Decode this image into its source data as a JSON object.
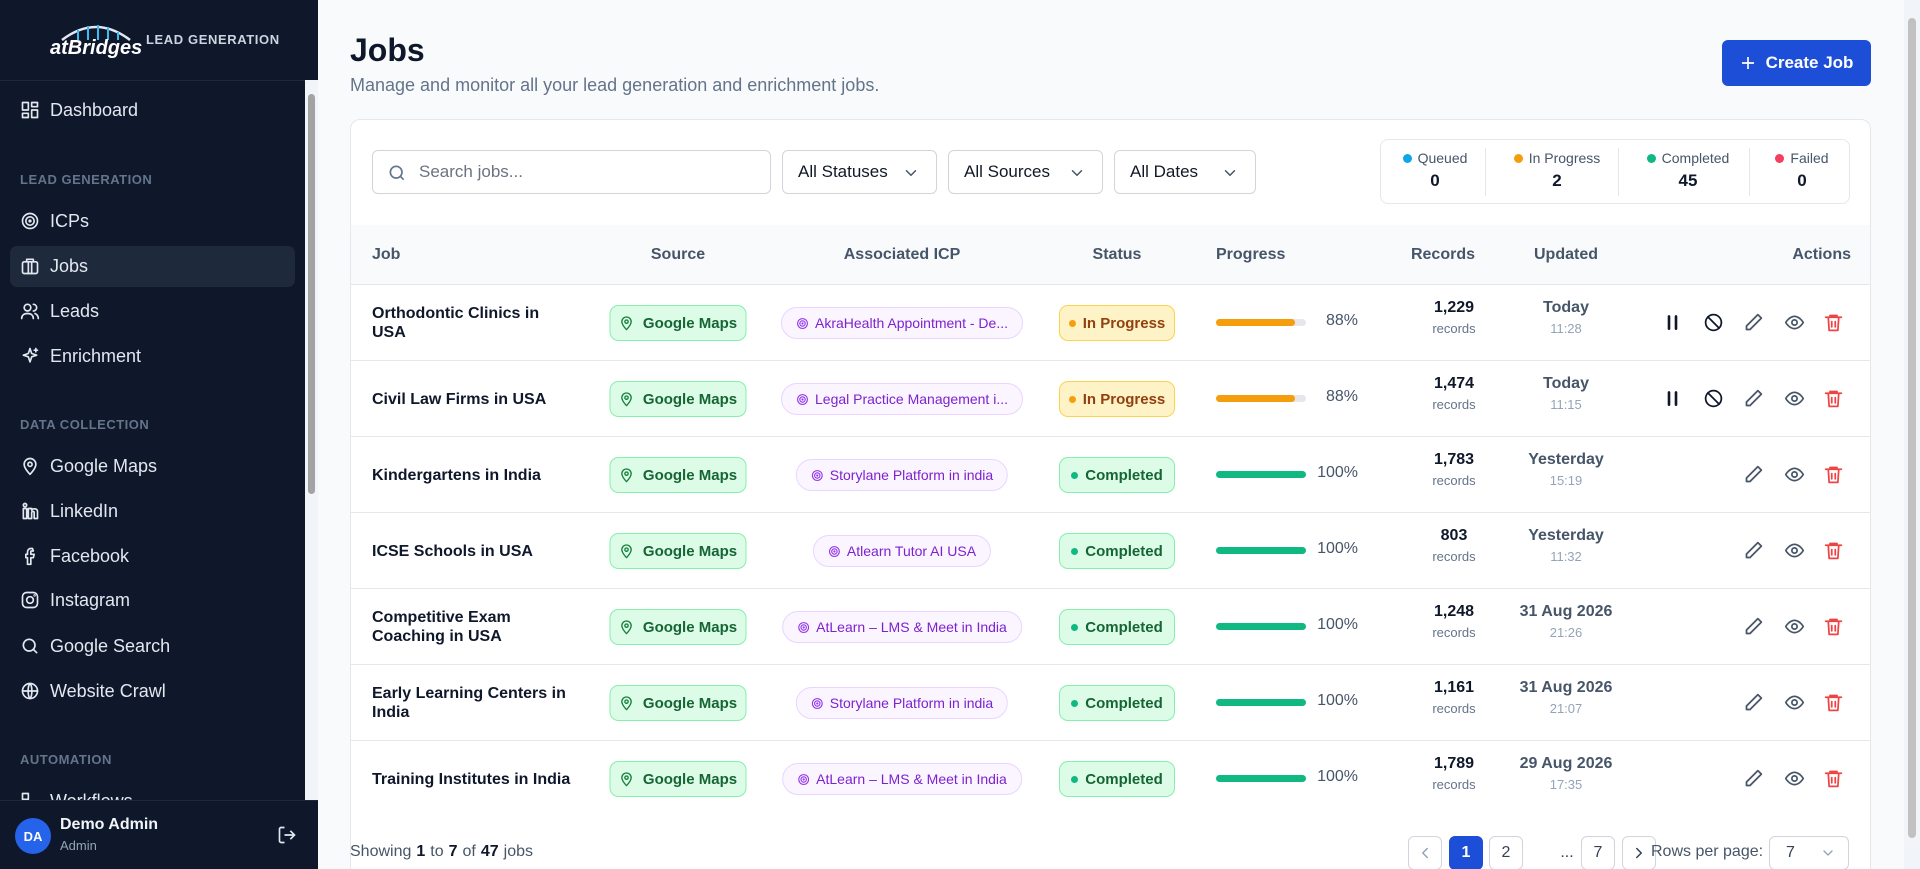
{
  "sidebar": {
    "brand": "atBridges",
    "brand_tag": "LEAD GENERATION",
    "sections": [
      {
        "items": [
          "Dashboard"
        ]
      },
      {
        "heading": "LEAD GENERATION",
        "items": [
          "ICPs",
          "Jobs",
          "Leads",
          "Enrichment"
        ]
      },
      {
        "heading": "DATA COLLECTION",
        "items": [
          "Google Maps",
          "LinkedIn",
          "Facebook",
          "Instagram",
          "Google Search",
          "Website Crawl"
        ]
      },
      {
        "heading": "AUTOMATION",
        "items": [
          "Workflows"
        ]
      }
    ],
    "user": {
      "initials": "DA",
      "name": "Demo Admin",
      "role": "Admin"
    }
  },
  "header": {
    "title": "Jobs",
    "subtitle": "Manage and monitor all your lead generation and enrichment jobs.",
    "create_button": "Create Job"
  },
  "filters": {
    "search_placeholder": "Search jobs...",
    "selects": [
      "All Statuses",
      "All Sources",
      "All Dates"
    ]
  },
  "stats": [
    {
      "label": "Queued",
      "value": "0",
      "color": "#0ea5e9"
    },
    {
      "label": "In Progress",
      "value": "2",
      "color": "#f59e0b"
    },
    {
      "label": "Completed",
      "value": "45",
      "color": "#10b981"
    },
    {
      "label": "Failed",
      "value": "0",
      "color": "#f43f5e"
    }
  ],
  "table": {
    "columns": [
      "Job",
      "Source",
      "Associated ICP",
      "Status",
      "Progress",
      "Records",
      "Updated",
      "Actions"
    ],
    "records_unit": "records",
    "rows": [
      {
        "job": "Orthodontic Clinics in USA",
        "source": "Google Maps",
        "icp": "AkraHealth Appointment - De...",
        "status": "In Progress",
        "progress": 88,
        "progress_label": "88%",
        "records": "1,229",
        "updated_date": "Today",
        "updated_time": "11:28"
      },
      {
        "job": "Civil Law Firms in USA",
        "source": "Google Maps",
        "icp": "Legal Practice Management i...",
        "status": "In Progress",
        "progress": 88,
        "progress_label": "88%",
        "records": "1,474",
        "updated_date": "Today",
        "updated_time": "11:15"
      },
      {
        "job": "Kindergartens in India",
        "source": "Google Maps",
        "icp": "Storylane Platform in india",
        "status": "Completed",
        "progress": 100,
        "progress_label": "100%",
        "records": "1,783",
        "updated_date": "Yesterday",
        "updated_time": "15:19"
      },
      {
        "job": "ICSE Schools in USA",
        "source": "Google Maps",
        "icp": "Atlearn Tutor AI USA",
        "status": "Completed",
        "progress": 100,
        "progress_label": "100%",
        "records": "803",
        "updated_date": "Yesterday",
        "updated_time": "11:32"
      },
      {
        "job": "Competitive Exam Coaching in USA",
        "source": "Google Maps",
        "icp": "AtLearn – LMS & Meet in India",
        "status": "Completed",
        "progress": 100,
        "progress_label": "100%",
        "records": "1,248",
        "updated_date": "31 Aug 2026",
        "updated_time": "21:26"
      },
      {
        "job": "Early Learning Centers in India",
        "source": "Google Maps",
        "icp": "Storylane Platform in india",
        "status": "Completed",
        "progress": 100,
        "progress_label": "100%",
        "records": "1,161",
        "updated_date": "31 Aug 2026",
        "updated_time": "21:07"
      },
      {
        "job": "Training Institutes in India",
        "source": "Google Maps",
        "icp": "AtLearn – LMS & Meet in India",
        "status": "Completed",
        "progress": 100,
        "progress_label": "100%",
        "records": "1,789",
        "updated_date": "29 Aug 2026",
        "updated_time": "17:35"
      }
    ]
  },
  "pagination": {
    "summary": {
      "prefix": "Showing",
      "from": "1",
      "to_word": "to",
      "to": "7",
      "of_word": "of",
      "total": "47",
      "suffix": "jobs"
    },
    "pages": [
      "1",
      "2",
      "...",
      "7"
    ],
    "rows_per_page_label": "Rows per page:",
    "rows_per_page": "7"
  }
}
